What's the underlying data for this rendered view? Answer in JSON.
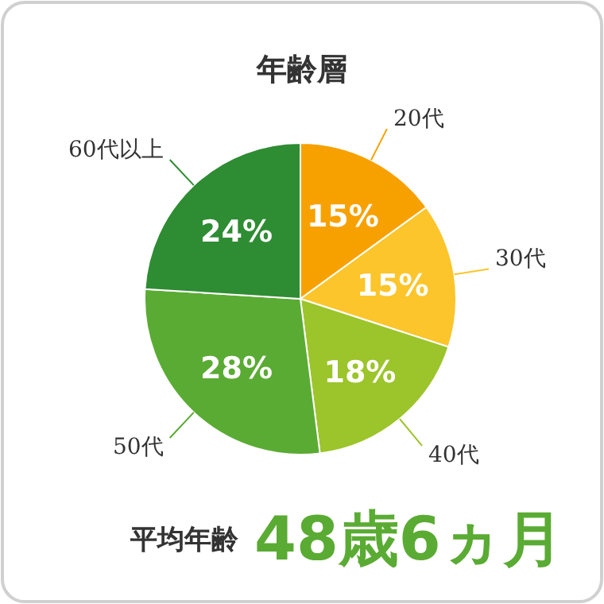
{
  "chart_data": {
    "type": "pie",
    "title": "年齢層",
    "categories": [
      "20代",
      "30代",
      "40代",
      "50代",
      "60代以上"
    ],
    "values": [
      15,
      15,
      18,
      28,
      24
    ],
    "colors": [
      "#f7a100",
      "#fcc52b",
      "#9cc42b",
      "#5aab33",
      "#2e8c33"
    ],
    "value_labels": [
      "15%",
      "15%",
      "18%",
      "28%",
      "24%"
    ],
    "annotations": [
      "平均年齢",
      "48歳6ヵ月"
    ]
  }
}
